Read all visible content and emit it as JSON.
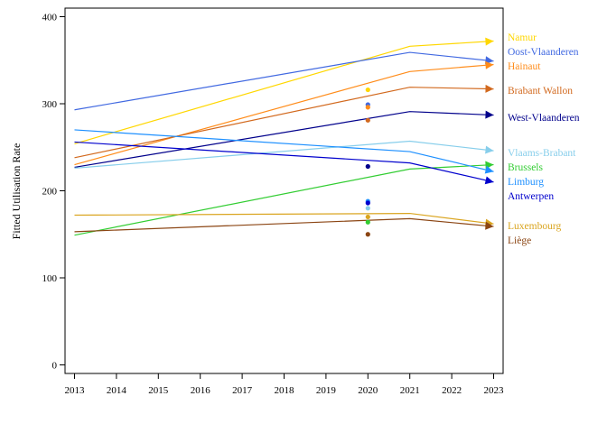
{
  "chart_data": {
    "type": "line",
    "title": "",
    "xlabel": "",
    "ylabel": "Fitted Utilisation Rate",
    "xlim": [
      2013,
      2023
    ],
    "ylim": [
      0,
      400
    ],
    "x_ticks": [
      2013,
      2014,
      2015,
      2016,
      2017,
      2018,
      2019,
      2020,
      2021,
      2022,
      2023
    ],
    "y_ticks": [
      0,
      100,
      200,
      300,
      400
    ],
    "grid": false,
    "legend_position": "right (labels at line ends)",
    "series": [
      {
        "name": "Namur",
        "color": "#FFD700",
        "x": [
          2013,
          2021,
          2023
        ],
        "values": [
          254,
          366,
          372
        ],
        "point_2020": 316
      },
      {
        "name": "Oost-Vlaanderen",
        "color": "#4169E1",
        "x": [
          2013,
          2021,
          2023
        ],
        "values": [
          293,
          359,
          349
        ],
        "point_2020": 299
      },
      {
        "name": "Hainaut",
        "color": "#FF8C1A",
        "x": [
          2013,
          2021,
          2023
        ],
        "values": [
          230,
          337,
          345
        ],
        "point_2020": 296
      },
      {
        "name": "Brabant Wallon",
        "color": "#D2691E",
        "x": [
          2013,
          2021,
          2023
        ],
        "values": [
          238,
          319,
          317
        ],
        "point_2020": 281
      },
      {
        "name": "West-Vlaanderen",
        "color": "#00008B",
        "x": [
          2013,
          2021,
          2023
        ],
        "values": [
          227,
          291,
          287
        ],
        "point_2020": 228
      },
      {
        "name": "Vlaams-Brabant",
        "color": "#87CEEB",
        "x": [
          2013,
          2021,
          2023
        ],
        "values": [
          226,
          257,
          246
        ],
        "point_2020": 180
      },
      {
        "name": "Brussels",
        "color": "#32CD32",
        "x": [
          2013,
          2021,
          2023
        ],
        "values": [
          149,
          225,
          230
        ],
        "point_2020": 164
      },
      {
        "name": "Limburg",
        "color": "#1E90FF",
        "x": [
          2013,
          2021,
          2023
        ],
        "values": [
          270,
          245,
          222
        ],
        "point_2020": 188
      },
      {
        "name": "Antwerpen",
        "color": "#0000CD",
        "x": [
          2013,
          2021,
          2023
        ],
        "values": [
          256,
          232,
          210
        ],
        "point_2020": 186
      },
      {
        "name": "Luxembourg",
        "color": "#DAA520",
        "x": [
          2013,
          2021,
          2023
        ],
        "values": [
          172,
          174,
          162
        ],
        "point_2020": 170
      },
      {
        "name": "Liège",
        "color": "#8B4513",
        "x": [
          2013,
          2021,
          2023
        ],
        "values": [
          153,
          168,
          159
        ],
        "point_2020": 150
      }
    ]
  }
}
